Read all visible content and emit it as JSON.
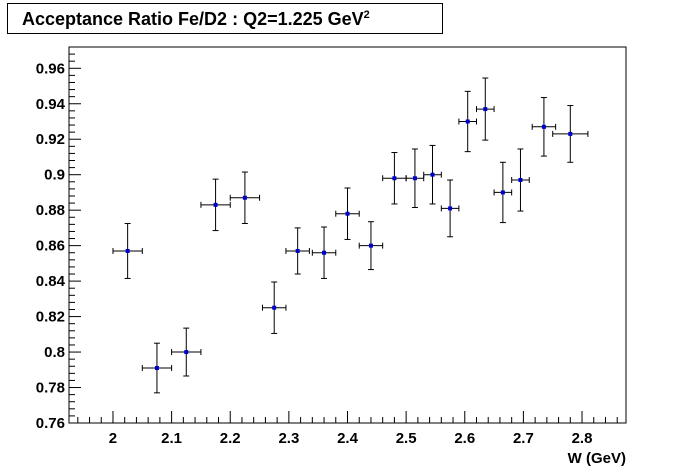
{
  "chart_data": {
    "type": "scatter",
    "title": "Acceptance Ratio Fe/D2 : Q2=1.225 GeV",
    "title_superscript": "2",
    "xlabel": "W (GeV)",
    "ylabel": "",
    "xlim": [
      1.925,
      2.875
    ],
    "ylim": [
      0.76,
      0.972
    ],
    "x_ticks": [
      "2",
      "2.1",
      "2.2",
      "2.3",
      "2.4",
      "2.5",
      "2.6",
      "2.7",
      "2.8"
    ],
    "y_ticks": [
      "0.76",
      "0.78",
      "0.8",
      "0.82",
      "0.84",
      "0.86",
      "0.88",
      "0.9",
      "0.92",
      "0.94",
      "0.96"
    ],
    "grid": false,
    "marker_color": "#0000cc",
    "error_bar_color": "#000000",
    "points": [
      {
        "x": 2.025,
        "y": 0.857,
        "xerr": 0.025,
        "yerr": 0.0155
      },
      {
        "x": 2.075,
        "y": 0.791,
        "xerr": 0.025,
        "yerr": 0.014
      },
      {
        "x": 2.125,
        "y": 0.8,
        "xerr": 0.025,
        "yerr": 0.0135
      },
      {
        "x": 2.175,
        "y": 0.883,
        "xerr": 0.025,
        "yerr": 0.0145
      },
      {
        "x": 2.225,
        "y": 0.887,
        "xerr": 0.025,
        "yerr": 0.0145
      },
      {
        "x": 2.275,
        "y": 0.825,
        "xerr": 0.02,
        "yerr": 0.0145
      },
      {
        "x": 2.315,
        "y": 0.857,
        "xerr": 0.02,
        "yerr": 0.013
      },
      {
        "x": 2.36,
        "y": 0.856,
        "xerr": 0.02,
        "yerr": 0.0145
      },
      {
        "x": 2.4,
        "y": 0.878,
        "xerr": 0.02,
        "yerr": 0.0145
      },
      {
        "x": 2.44,
        "y": 0.86,
        "xerr": 0.02,
        "yerr": 0.0135
      },
      {
        "x": 2.48,
        "y": 0.898,
        "xerr": 0.02,
        "yerr": 0.0145
      },
      {
        "x": 2.515,
        "y": 0.898,
        "xerr": 0.015,
        "yerr": 0.0165
      },
      {
        "x": 2.545,
        "y": 0.9,
        "xerr": 0.015,
        "yerr": 0.0165
      },
      {
        "x": 2.575,
        "y": 0.881,
        "xerr": 0.015,
        "yerr": 0.016
      },
      {
        "x": 2.605,
        "y": 0.93,
        "xerr": 0.015,
        "yerr": 0.017
      },
      {
        "x": 2.635,
        "y": 0.937,
        "xerr": 0.015,
        "yerr": 0.0175
      },
      {
        "x": 2.665,
        "y": 0.89,
        "xerr": 0.015,
        "yerr": 0.017
      },
      {
        "x": 2.695,
        "y": 0.897,
        "xerr": 0.015,
        "yerr": 0.0175
      },
      {
        "x": 2.735,
        "y": 0.927,
        "xerr": 0.02,
        "yerr": 0.0165
      },
      {
        "x": 2.78,
        "y": 0.923,
        "xerr": 0.03,
        "yerr": 0.016
      }
    ]
  }
}
